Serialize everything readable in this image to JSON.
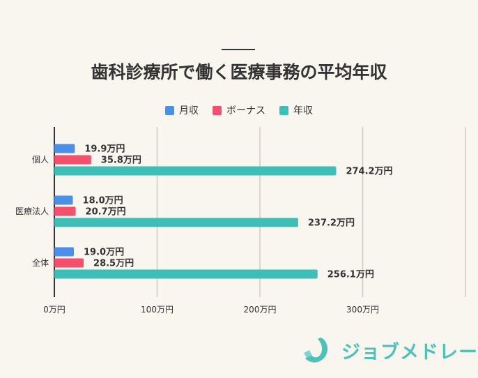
{
  "title": "歯科診療所で働く医療事務の平均年収",
  "logo_text": "ジョブメドレー",
  "chart_data": {
    "type": "bar",
    "orientation": "horizontal",
    "title": "歯科診療所で働く医療事務の平均年収",
    "categories": [
      "個人",
      "医療法人",
      "全体"
    ],
    "series": [
      {
        "name": "月収",
        "color": "#4a90e8",
        "values": [
          19.9,
          18.0,
          19.0
        ],
        "labels": [
          "19.9万円",
          "18.0万円",
          "19.0万円"
        ]
      },
      {
        "name": "ボーナス",
        "color": "#f4506e",
        "values": [
          35.8,
          20.7,
          28.5
        ],
        "labels": [
          "35.8万円",
          "20.7万円",
          "28.5万円"
        ]
      },
      {
        "name": "年収",
        "color": "#3dbfb8",
        "values": [
          274.2,
          237.2,
          256.1
        ],
        "labels": [
          "274.2万円",
          "237.2万円",
          "256.1万円"
        ]
      }
    ],
    "xlim": [
      0,
      400
    ],
    "xticks": [
      0,
      100,
      200,
      300,
      400
    ],
    "xtick_labels": [
      "0万円",
      "100万円",
      "200万円",
      "300万円",
      ""
    ],
    "grid": true,
    "legend": "top"
  }
}
